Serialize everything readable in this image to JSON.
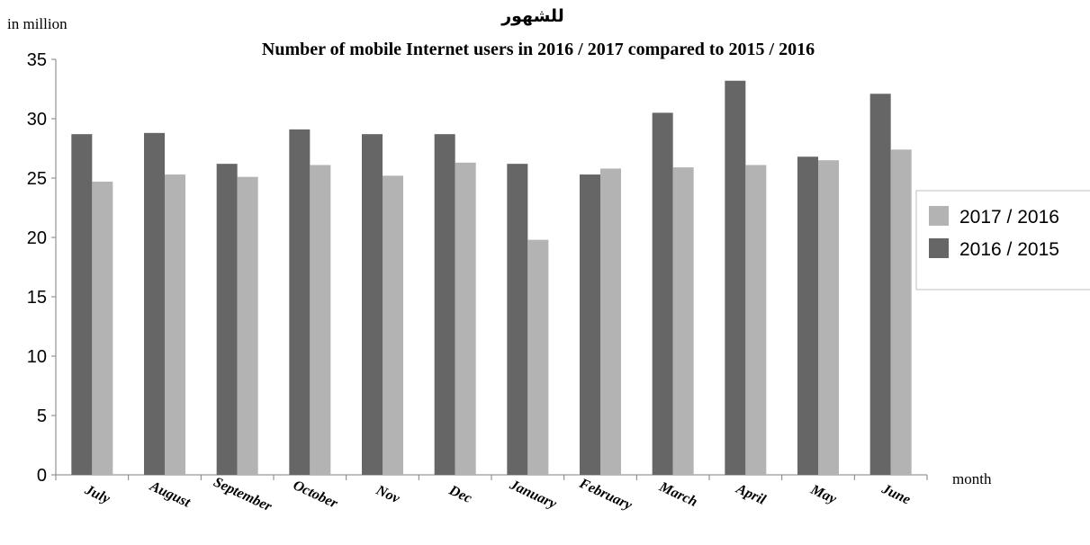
{
  "chart_data": {
    "type": "bar",
    "title_arabic": "للشهور",
    "title": "Number of mobile Internet users in 2016 / 2017 compared to 2015 / 2016",
    "ylabel": "in million",
    "xlabel": "month",
    "categories": [
      "July",
      "August",
      "September",
      "October",
      "Nov",
      "Dec",
      "January",
      "February",
      "March",
      "April",
      "May",
      "June"
    ],
    "ylim": [
      0,
      35
    ],
    "yticks": [
      0,
      5,
      10,
      15,
      20,
      25,
      30,
      35
    ],
    "grid": false,
    "legend_position": "right",
    "series": [
      {
        "name": "2016 / 2015",
        "color": "#666666",
        "values": [
          28.7,
          28.8,
          26.2,
          29.1,
          28.7,
          28.7,
          26.2,
          25.3,
          30.5,
          33.2,
          26.8,
          32.1
        ]
      },
      {
        "name": "2017 / 2016",
        "color": "#b3b3b3",
        "values": [
          24.7,
          25.3,
          25.1,
          26.1,
          25.2,
          26.3,
          19.8,
          25.8,
          25.9,
          26.1,
          26.5,
          27.4
        ]
      }
    ],
    "legend_order": [
      1,
      0
    ]
  }
}
